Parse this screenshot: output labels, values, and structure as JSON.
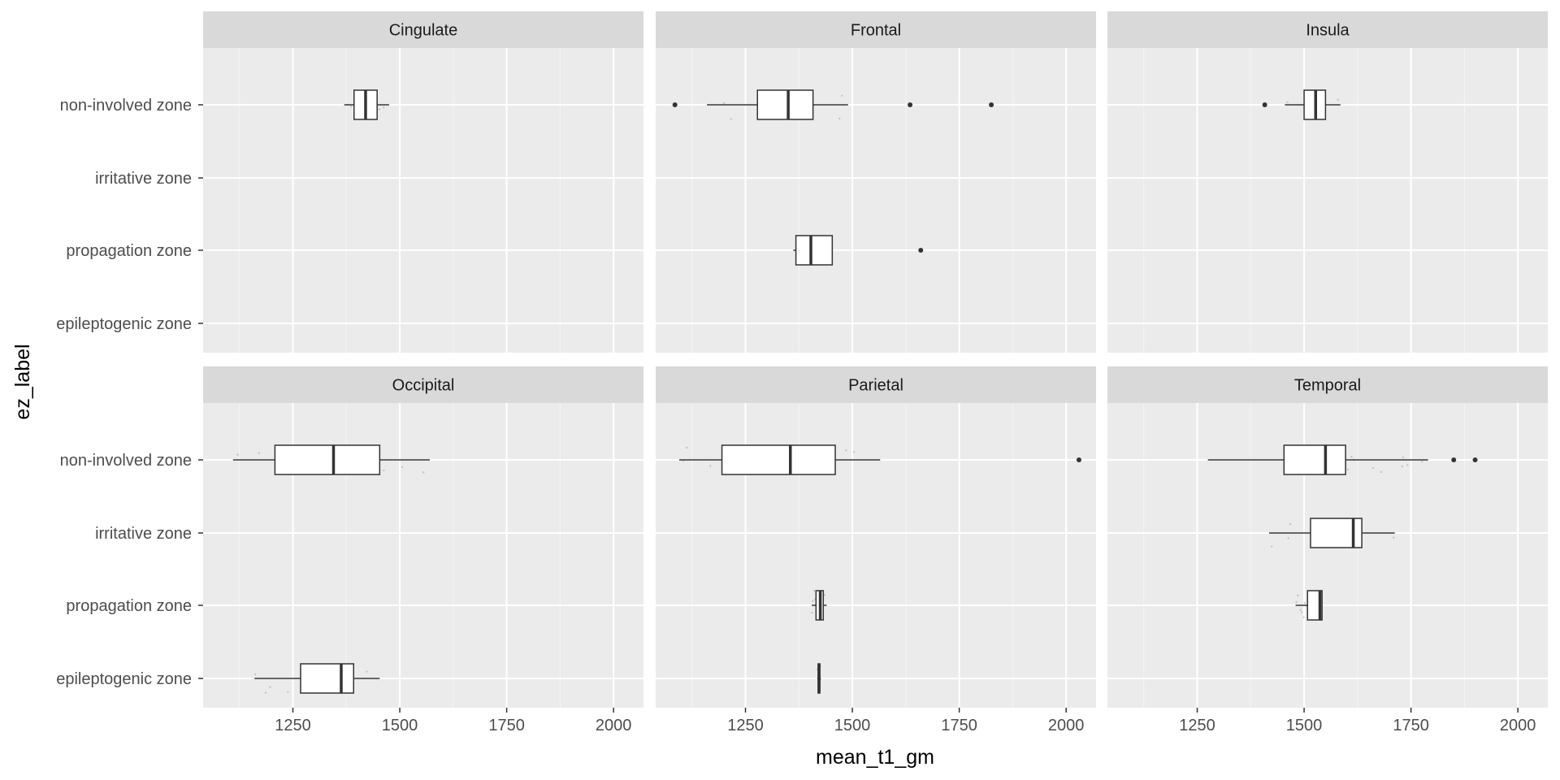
{
  "chart_data": {
    "type": "boxplot",
    "facet_layout": "2 rows x 3 columns",
    "xlabel": "mean_t1_gm",
    "ylabel": "ez_label",
    "xlim": [
      1040,
      2070
    ],
    "x_ticks": [
      1250,
      1500,
      1750,
      2000
    ],
    "x_tick_labels": [
      "1250",
      "1500",
      "1750",
      "2000"
    ],
    "categories": [
      "non-involved zone",
      "irritative zone",
      "propagation zone",
      "epileptogenic zone"
    ],
    "grid": true,
    "panel_background": "#ebebeb",
    "strip_background": "#d9d9d9",
    "box_fill": "#ffffff",
    "box_stroke": "#333333",
    "jitter_color": "#aaaaaa",
    "panels": [
      {
        "name": "Cingulate",
        "boxes": [
          {
            "category": "non-involved zone",
            "whisker_low": 1370,
            "q1": 1393,
            "median": 1420,
            "q3": 1447,
            "whisker_high": 1475,
            "outliers": []
          }
        ]
      },
      {
        "name": "Frontal",
        "boxes": [
          {
            "category": "non-involved zone",
            "whisker_low": 1160,
            "q1": 1278,
            "median": 1350,
            "q3": 1408,
            "whisker_high": 1490,
            "outliers": [
              1085,
              1635,
              1825
            ]
          },
          {
            "category": "propagation zone",
            "whisker_low": 1362,
            "q1": 1368,
            "median": 1403,
            "q3": 1453,
            "whisker_high": 1453,
            "outliers": [
              1660
            ]
          }
        ]
      },
      {
        "name": "Insula",
        "boxes": [
          {
            "category": "non-involved zone",
            "whisker_low": 1455,
            "q1": 1500,
            "median": 1527,
            "q3": 1550,
            "whisker_high": 1585,
            "outliers": [
              1408
            ]
          }
        ]
      },
      {
        "name": "Occipital",
        "boxes": [
          {
            "category": "non-involved zone",
            "whisker_low": 1110,
            "q1": 1208,
            "median": 1345,
            "q3": 1453,
            "whisker_high": 1570,
            "outliers": []
          },
          {
            "category": "epileptogenic zone",
            "whisker_low": 1160,
            "q1": 1268,
            "median": 1363,
            "q3": 1392,
            "whisker_high": 1453,
            "outliers": []
          }
        ]
      },
      {
        "name": "Parietal",
        "boxes": [
          {
            "category": "non-involved zone",
            "whisker_low": 1095,
            "q1": 1195,
            "median": 1355,
            "q3": 1460,
            "whisker_high": 1565,
            "outliers": [
              2030
            ]
          },
          {
            "category": "propagation zone",
            "whisker_low": 1405,
            "q1": 1415,
            "median": 1425,
            "q3": 1432,
            "whisker_high": 1440,
            "outliers": []
          },
          {
            "category": "epileptogenic zone",
            "whisker_low": 1418,
            "q1": 1420,
            "median": 1422,
            "q3": 1424,
            "whisker_high": 1426,
            "outliers": []
          }
        ]
      },
      {
        "name": "Temporal",
        "boxes": [
          {
            "category": "non-involved zone",
            "whisker_low": 1275,
            "q1": 1453,
            "median": 1550,
            "q3": 1597,
            "whisker_high": 1790,
            "outliers": [
              1850,
              1900
            ]
          },
          {
            "category": "irritative zone",
            "whisker_low": 1418,
            "q1": 1515,
            "median": 1615,
            "q3": 1635,
            "whisker_high": 1712,
            "outliers": []
          },
          {
            "category": "propagation zone",
            "whisker_low": 1480,
            "q1": 1508,
            "median": 1537,
            "q3": 1542,
            "whisker_high": 1542,
            "outliers": []
          }
        ]
      }
    ]
  }
}
